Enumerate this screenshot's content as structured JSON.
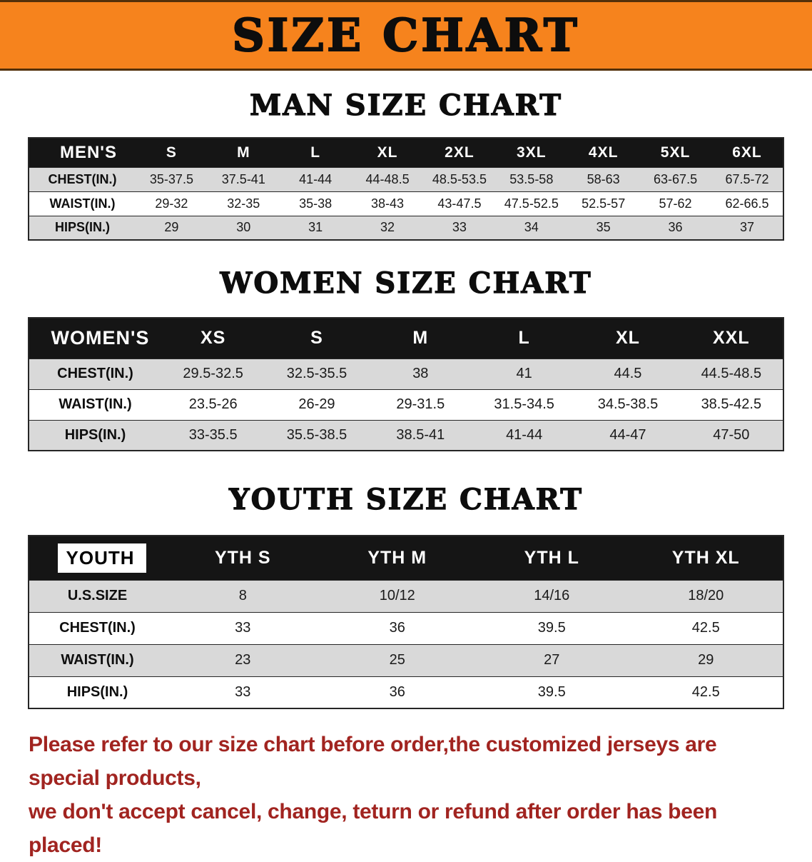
{
  "banner": {
    "title": "SIZE CHART"
  },
  "tables": {
    "men": {
      "heading": "MAN SIZE CHART",
      "corner_label": "MEN'S",
      "columns": [
        "S",
        "M",
        "L",
        "XL",
        "2XL",
        "3XL",
        "4XL",
        "5XL",
        "6XL"
      ],
      "rows": [
        {
          "label": "CHEST(IN.)",
          "values": [
            "35-37.5",
            "37.5-41",
            "41-44",
            "44-48.5",
            "48.5-53.5",
            "53.5-58",
            "58-63",
            "63-67.5",
            "67.5-72"
          ]
        },
        {
          "label": "WAIST(IN.)",
          "values": [
            "29-32",
            "32-35",
            "35-38",
            "38-43",
            "43-47.5",
            "47.5-52.5",
            "52.5-57",
            "57-62",
            "62-66.5"
          ]
        },
        {
          "label": "HIPS(IN.)",
          "values": [
            "29",
            "30",
            "31",
            "32",
            "33",
            "34",
            "35",
            "36",
            "37"
          ]
        }
      ]
    },
    "women": {
      "heading": "WOMEN SIZE CHART",
      "corner_label": "WOMEN'S",
      "columns": [
        "XS",
        "S",
        "M",
        "L",
        "XL",
        "XXL"
      ],
      "rows": [
        {
          "label": "CHEST(IN.)",
          "values": [
            "29.5-32.5",
            "32.5-35.5",
            "38",
            "41",
            "44.5",
            "44.5-48.5"
          ]
        },
        {
          "label": "WAIST(IN.)",
          "values": [
            "23.5-26",
            "26-29",
            "29-31.5",
            "31.5-34.5",
            "34.5-38.5",
            "38.5-42.5"
          ]
        },
        {
          "label": "HIPS(IN.)",
          "values": [
            "33-35.5",
            "35.5-38.5",
            "38.5-41",
            "41-44",
            "44-47",
            "47-50"
          ]
        }
      ]
    },
    "youth": {
      "heading": "YOUTH SIZE CHART",
      "corner_label": "YOUTH",
      "columns": [
        "YTH S",
        "YTH M",
        "YTH L",
        "YTH XL"
      ],
      "rows": [
        {
          "label": "U.S.SIZE",
          "values": [
            "8",
            "10/12",
            "14/16",
            "18/20"
          ]
        },
        {
          "label": "CHEST(IN.)",
          "values": [
            "33",
            "36",
            "39.5",
            "42.5"
          ]
        },
        {
          "label": "WAIST(IN.)",
          "values": [
            "23",
            "25",
            "27",
            "29"
          ]
        },
        {
          "label": "HIPS(IN.)",
          "values": [
            "33",
            "36",
            "39.5",
            "42.5"
          ]
        }
      ]
    }
  },
  "disclaimer": {
    "line1": "Please refer to our size chart before order,the customized jerseys are special products,",
    "line2": "we don't accept cancel, change, teturn or refund after order has been placed!"
  },
  "colors": {
    "banner_bg": "#f6831d",
    "banner_border": "#53300a",
    "table_header_bg": "#151515",
    "table_header_text": "#ffffff",
    "row_shade": "#d9d9d9",
    "border_color": "#262626",
    "text_color": "#111111",
    "footer_red": "#a12420"
  }
}
